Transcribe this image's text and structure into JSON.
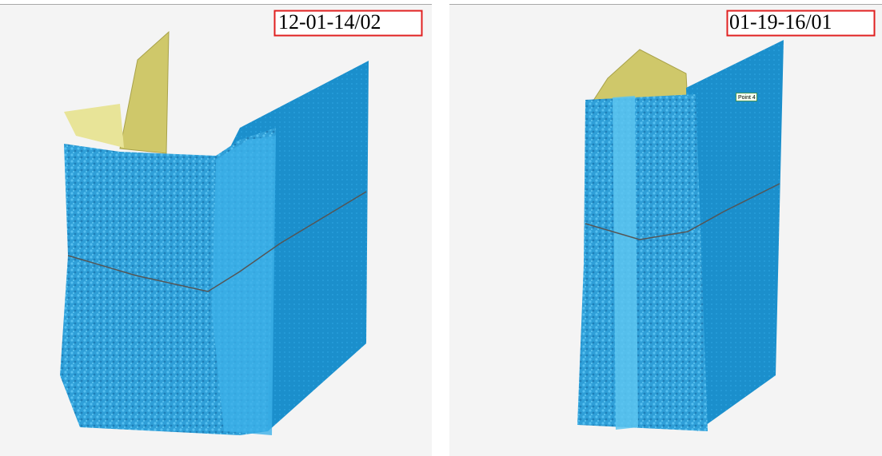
{
  "panels": [
    {
      "label": "12-01-14/02"
    },
    {
      "label": "01-19-16/01",
      "annotation": "Point 4"
    }
  ]
}
